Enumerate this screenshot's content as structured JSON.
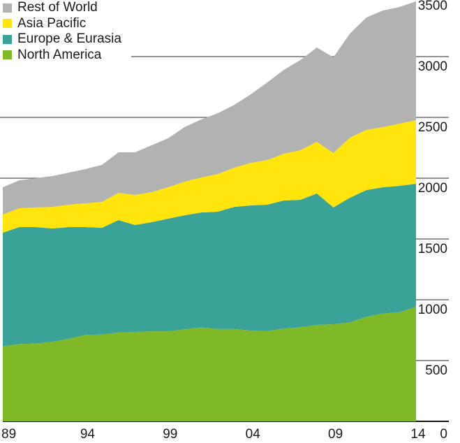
{
  "chart_data": {
    "type": "area",
    "stacked": true,
    "title": "",
    "xlabel": "",
    "ylabel": "",
    "x": [
      1989,
      1990,
      1991,
      1992,
      1993,
      1994,
      1995,
      1996,
      1997,
      1998,
      1999,
      2000,
      2001,
      2002,
      2003,
      2004,
      2005,
      2006,
      2007,
      2008,
      2009,
      2010,
      2011,
      2012,
      2013,
      2014
    ],
    "x_tick_labels": [
      "89",
      "94",
      "99",
      "04",
      "09",
      "14"
    ],
    "x_tick_years": [
      1989,
      1994,
      1999,
      2004,
      2009,
      2014
    ],
    "y_ticks": [
      0,
      500,
      1000,
      1500,
      2000,
      2500,
      3000,
      3500
    ],
    "y_tick_labels": [
      "0",
      "500",
      "1000",
      "1500",
      "2000",
      "2500",
      "3000",
      "3500"
    ],
    "ylim": [
      0,
      3500
    ],
    "y_axis_position": "right",
    "legend_position": "top-left",
    "series": [
      {
        "name": "North America",
        "color": "#80b927",
        "values": [
          617,
          636,
          640,
          655,
          678,
          711,
          714,
          730,
          736,
          741,
          741,
          757,
          772,
          759,
          759,
          747,
          743,
          762,
          774,
          793,
          799,
          814,
          860,
          887,
          897,
          942
        ]
      },
      {
        "name": "Europe & Eurasia",
        "color": "#3aa296",
        "values": [
          935,
          962,
          958,
          931,
          920,
          887,
          878,
          925,
          879,
          897,
          926,
          938,
          946,
          965,
          1005,
          1029,
          1039,
          1054,
          1048,
          1081,
          960,
          1025,
          1042,
          1038,
          1040,
          1012
        ]
      },
      {
        "name": "Asia Pacific",
        "color": "#ffe50c",
        "values": [
          149,
          155,
          161,
          178,
          184,
          195,
          213,
          224,
          247,
          247,
          258,
          276,
          288,
          310,
          322,
          350,
          367,
          385,
          408,
          425,
          448,
          494,
          495,
          495,
          511,
          523
        ]
      },
      {
        "name": "Rest of World",
        "color": "#b2b2b2",
        "values": [
          224,
          230,
          241,
          253,
          264,
          282,
          304,
          334,
          351,
          385,
          403,
          449,
          477,
          500,
          517,
          564,
          638,
          690,
          741,
          776,
          787,
          857,
          925,
          959,
          960,
          977
        ]
      }
    ],
    "legend_order": [
      "Rest of World",
      "Asia Pacific",
      "Europe & Eurasia",
      "North America"
    ]
  }
}
